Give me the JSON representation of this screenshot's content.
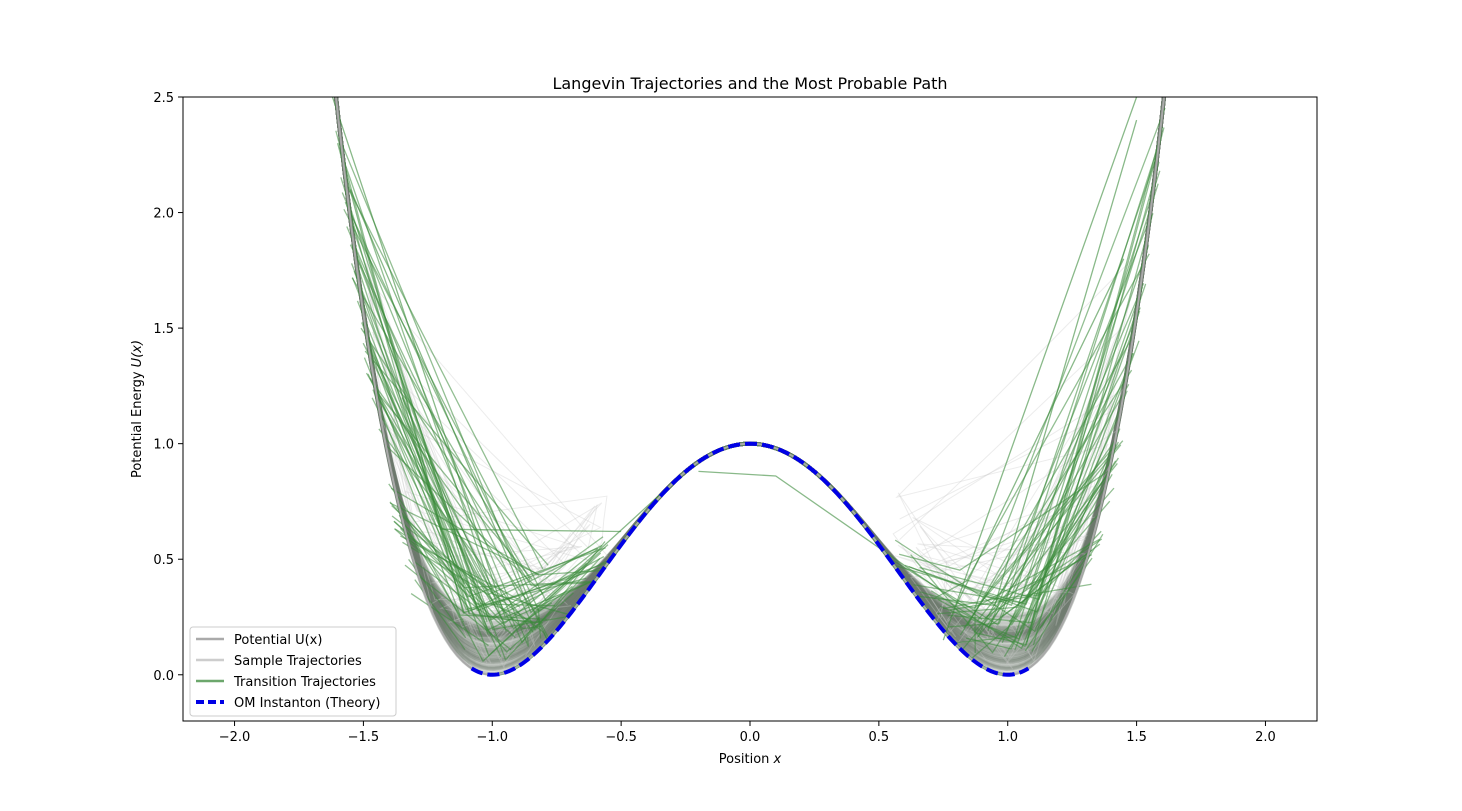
{
  "chart_data": {
    "type": "line",
    "title": "Langevin Trajectories and the Most Probable Path",
    "xlabel_text": "Position ",
    "xlabel_var": "x",
    "ylabel_text": "Potential Energy ",
    "ylabel_var": "U(x)",
    "xlim": [
      -2.2,
      2.2
    ],
    "ylim": [
      -0.2,
      2.5
    ],
    "xticks": [
      -2.0,
      -1.5,
      -1.0,
      -0.5,
      0.0,
      0.5,
      1.0,
      1.5,
      2.0
    ],
    "xtick_labels": [
      "−2.0",
      "−1.5",
      "−1.0",
      "−0.5",
      "0.0",
      "0.5",
      "1.0",
      "1.5",
      "2.0"
    ],
    "yticks": [
      0.0,
      0.5,
      1.0,
      1.5,
      2.0,
      2.5
    ],
    "ytick_labels": [
      "0.0",
      "0.5",
      "1.0",
      "1.5",
      "2.0",
      "2.5"
    ],
    "grid": false,
    "legend_position": "lower-left",
    "potential": "U(x) = (x^2 - 1)^2",
    "series": [
      {
        "name": "Potential U(x)",
        "color": "#aaaaaa",
        "style": "solid",
        "x_range": [
          -1.62,
          1.62
        ]
      },
      {
        "name": "Sample Trajectories",
        "color": "#c8c8c8",
        "style": "solid",
        "x_range": [
          -1.62,
          1.62
        ]
      },
      {
        "name": "Transition Trajectories",
        "color": "#3b8a3b",
        "style": "solid",
        "x_range": [
          -1.62,
          1.62
        ]
      },
      {
        "name": "OM Instanton (Theory)",
        "color": "#0000e6",
        "style": "dashed",
        "x_range": [
          -1.08,
          1.08
        ]
      }
    ],
    "transition_trajectories": [
      [
        [
          -1.6,
          2.3
        ],
        [
          -1.2,
          0.63
        ],
        [
          -0.5,
          0.62
        ]
      ],
      [
        [
          -1.62,
          2.5
        ],
        [
          -0.95,
          0.25
        ],
        [
          -0.6,
          0.41
        ]
      ],
      [
        [
          -0.2,
          0.88
        ],
        [
          0.1,
          0.86
        ],
        [
          0.9,
          0.24
        ]
      ],
      [
        [
          1.5,
          2.4
        ],
        [
          0.95,
          0.3
        ],
        [
          0.65,
          0.34
        ]
      ],
      [
        [
          0.75,
          0.15
        ],
        [
          1.5,
          2.5
        ]
      ],
      [
        [
          -1.55,
          2.1
        ],
        [
          -0.85,
          0.27
        ],
        [
          -0.3,
          0.83
        ]
      ],
      [
        [
          0.8,
          0.3
        ],
        [
          1.45,
          1.8
        ]
      ],
      [
        [
          -1.35,
          1.2
        ],
        [
          -1.0,
          0.35
        ],
        [
          -0.7,
          0.26
        ]
      ]
    ]
  }
}
